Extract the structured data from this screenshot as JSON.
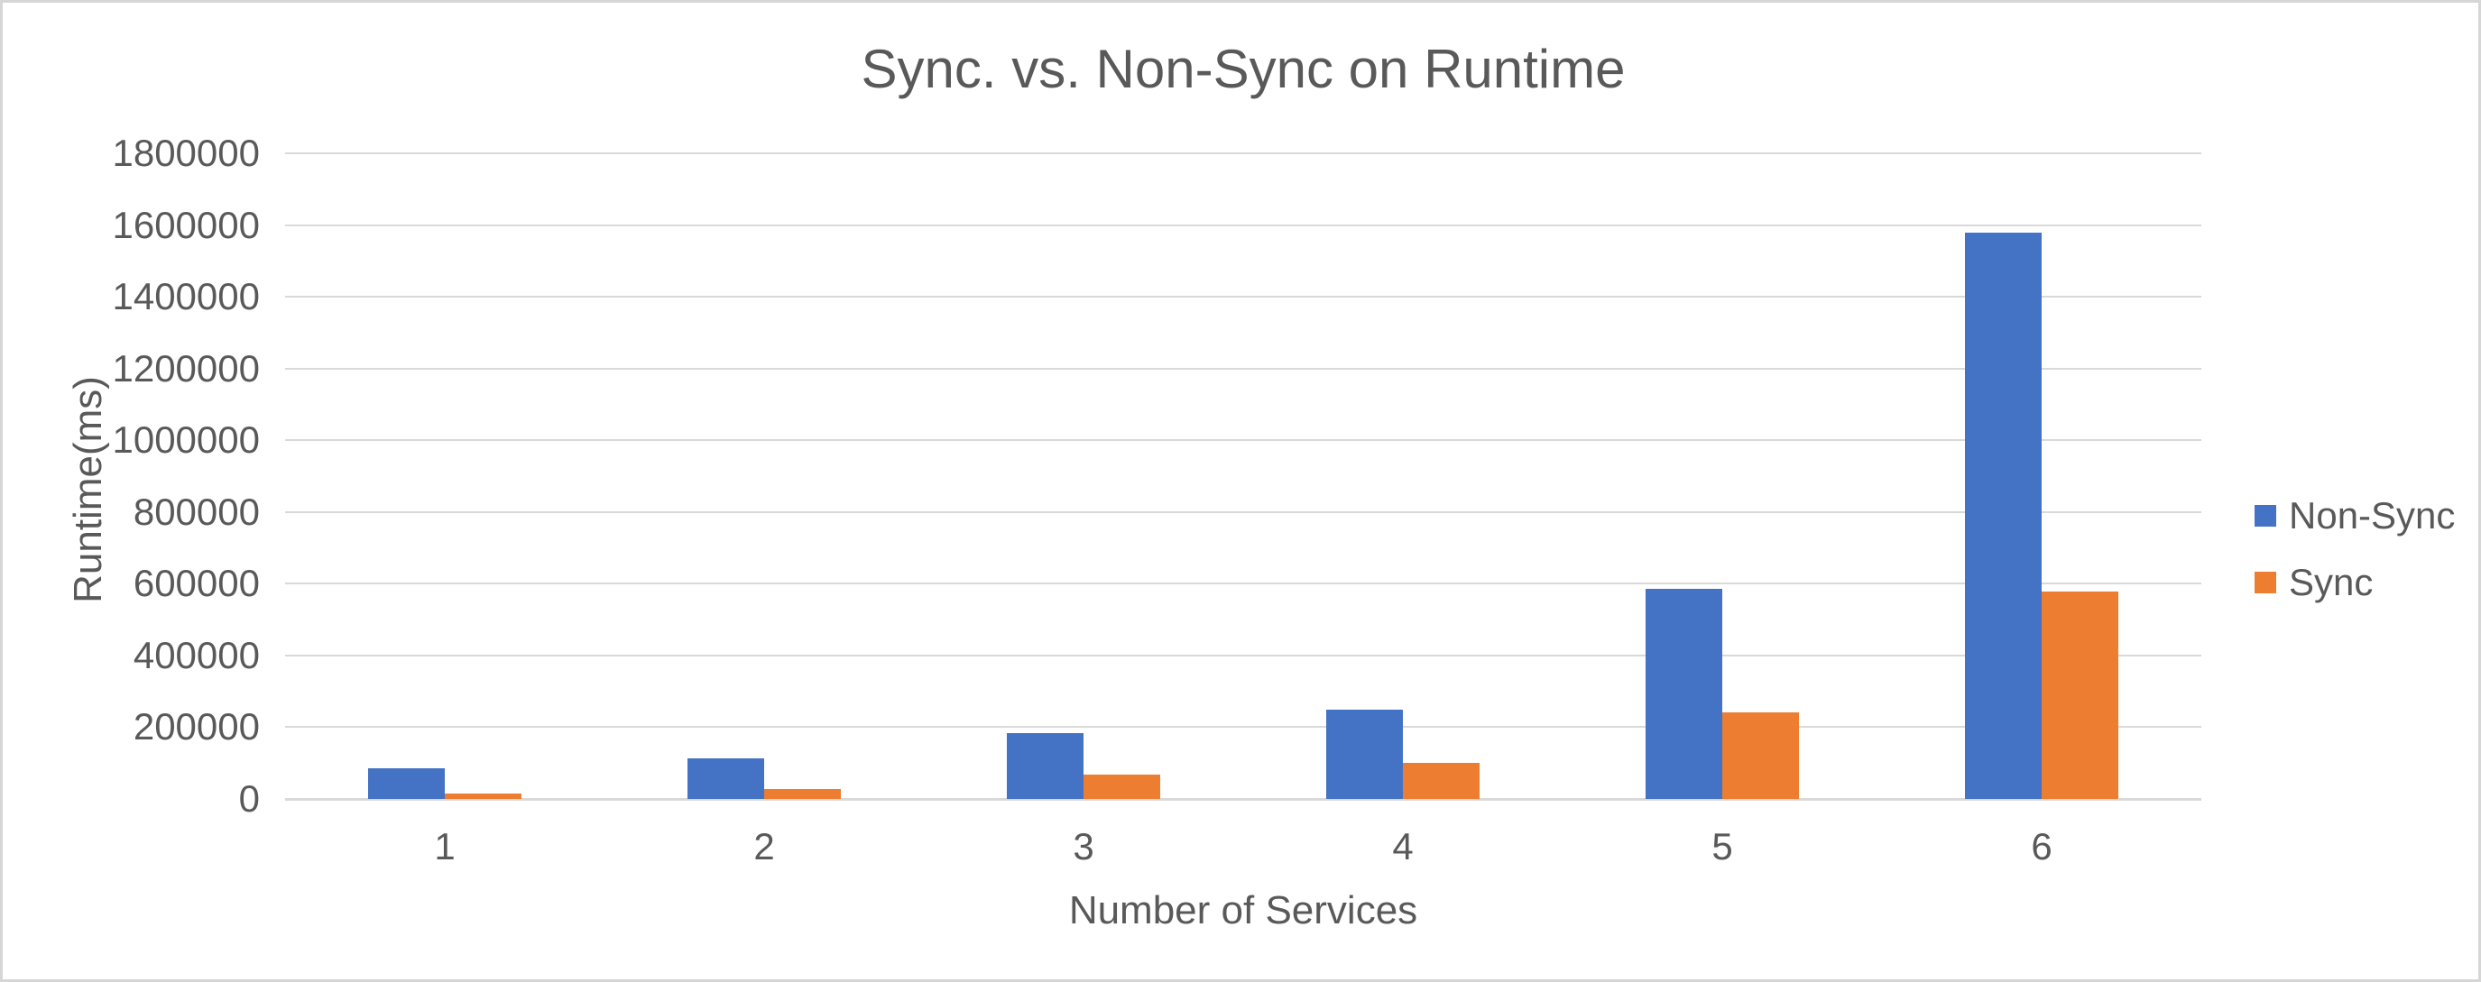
{
  "frame": {
    "background": "#ffffff",
    "border_color": "#d6d6d6"
  },
  "chart_data": {
    "type": "bar",
    "title": "Sync. vs. Non-Sync on Runtime",
    "xlabel": "Number of Services",
    "ylabel": "Runtime(ms)",
    "categories": [
      "1",
      "2",
      "3",
      "4",
      "5",
      "6"
    ],
    "series": [
      {
        "name": "Non-Sync",
        "color": "#4472C4",
        "values": [
          86000,
          113000,
          184000,
          250000,
          585000,
          1578000
        ]
      },
      {
        "name": "Sync",
        "color": "#ED7D31",
        "values": [
          15000,
          28000,
          68000,
          101000,
          241000,
          579000
        ]
      }
    ],
    "ylim": [
      0,
      1800000
    ],
    "yticks": [
      0,
      200000,
      400000,
      600000,
      800000,
      1000000,
      1200000,
      1400000,
      1600000,
      1800000
    ],
    "grid": true,
    "legend_position": "right",
    "colors": {
      "text": "#595959",
      "gridline": "#D9D9D9",
      "axis_line": "#D9D9D9"
    }
  }
}
